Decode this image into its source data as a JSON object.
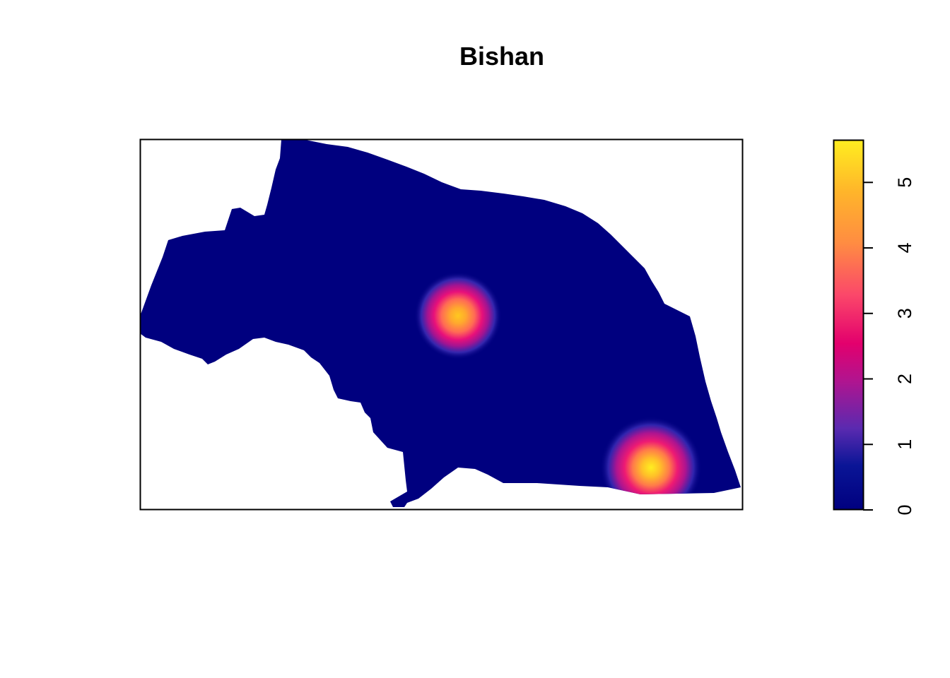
{
  "chart_data": {
    "type": "heatmap",
    "title": "Bishan",
    "xlabel": "",
    "ylabel": "",
    "palette": [
      "#00007f",
      "#0a1596",
      "#5a2ab0",
      "#b1148f",
      "#e3006d",
      "#fb476a",
      "#ff7f49",
      "#ffb12a",
      "#ffe120"
    ],
    "colorbar": {
      "ylim": [
        0,
        5.65
      ],
      "ticks": [
        {
          "value": 0,
          "label": "0"
        },
        {
          "value": 1,
          "label": "1"
        },
        {
          "value": 2,
          "label": "2"
        },
        {
          "value": 3,
          "label": "3"
        },
        {
          "value": 4,
          "label": "4"
        },
        {
          "value": 5,
          "label": "5"
        }
      ]
    },
    "hotspots": [
      {
        "peak": 4.6
      },
      {
        "peak": 5.6
      }
    ],
    "legend_position": "right",
    "grid": false
  }
}
